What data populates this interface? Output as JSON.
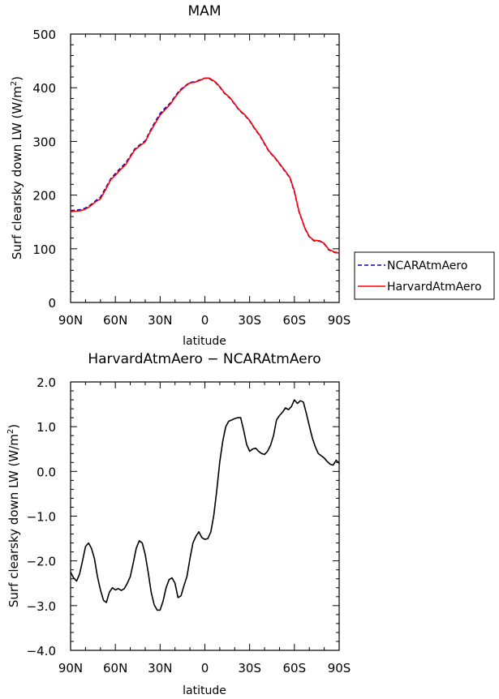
{
  "chart_data": [
    {
      "type": "line",
      "title": "MAM",
      "xlabel": "latitude",
      "ylabel": "Surf clearsky down LW (W/m",
      "ylabel_sup": "2",
      "ylabel_close": ")",
      "xlim": [
        90,
        -90
      ],
      "ylim": [
        0,
        500
      ],
      "x_ticks": [
        90,
        60,
        30,
        0,
        -30,
        -60,
        -90
      ],
      "x_tick_labels": [
        "90N",
        "60N",
        "30N",
        "0",
        "30S",
        "60S",
        "90S"
      ],
      "y_ticks": [
        0,
        100,
        200,
        300,
        400,
        500
      ],
      "y_tick_labels": [
        "0",
        "100",
        "200",
        "300",
        "400",
        "500"
      ],
      "legend_position": "right",
      "series": [
        {
          "name": "NCARAtmAero",
          "color": "#0000cc",
          "style": "dashed",
          "x": [
            90,
            87,
            83,
            80,
            77,
            73,
            70,
            67,
            63,
            60,
            57,
            53,
            50,
            47,
            43,
            40,
            37,
            33,
            30,
            27,
            23,
            20,
            17,
            13,
            10,
            7,
            3,
            0,
            -3,
            -7,
            -10,
            -13,
            -17,
            -20,
            -23,
            -27,
            -30,
            -33,
            -37,
            -40,
            -43,
            -47,
            -50,
            -53,
            -57,
            -60,
            -63,
            -67,
            -70,
            -73,
            -77,
            -80,
            -83,
            -87,
            -90
          ],
          "values": [
            171,
            172,
            173,
            176,
            181,
            190,
            196,
            211,
            231,
            240,
            249,
            260,
            273,
            286,
            295,
            301,
            318,
            338,
            352,
            361,
            372,
            384,
            395,
            404,
            410,
            411,
            415,
            418,
            417,
            410,
            401,
            390,
            380,
            369,
            358,
            348,
            338,
            325,
            310,
            295,
            281,
            269,
            258,
            247,
            232,
            206,
            170,
            138,
            122,
            115,
            114,
            109,
            98,
            93,
            92
          ]
        },
        {
          "name": "HarvardAtmAero",
          "color": "#ff0000",
          "style": "solid",
          "x": [
            90,
            87,
            83,
            80,
            77,
            73,
            70,
            67,
            63,
            60,
            57,
            53,
            50,
            47,
            43,
            40,
            37,
            33,
            30,
            27,
            23,
            20,
            17,
            13,
            10,
            7,
            3,
            0,
            -3,
            -7,
            -10,
            -13,
            -17,
            -20,
            -23,
            -27,
            -30,
            -33,
            -37,
            -40,
            -43,
            -47,
            -50,
            -53,
            -57,
            -60,
            -63,
            -67,
            -70,
            -73,
            -77,
            -80,
            -83,
            -87,
            -90
          ],
          "values": [
            169,
            170,
            171,
            174,
            179,
            188,
            193,
            208,
            229,
            237,
            246,
            257,
            271,
            284,
            293,
            299,
            316,
            335,
            349,
            358,
            370,
            382,
            393,
            403,
            409,
            410,
            414,
            418,
            418,
            411,
            402,
            391,
            381,
            370,
            359,
            349,
            339,
            326,
            311,
            296,
            282,
            270,
            259,
            248,
            233,
            208,
            171,
            139,
            123,
            116,
            115,
            110,
            99,
            94,
            92
          ]
        }
      ]
    },
    {
      "type": "line",
      "title": "HarvardAtmAero − NCARAtmAero",
      "xlabel": "latitude",
      "ylabel": "Surf clearsky down LW (W/m",
      "ylabel_sup": "2",
      "ylabel_close": ")",
      "xlim": [
        90,
        -90
      ],
      "ylim": [
        -4,
        2
      ],
      "x_ticks": [
        90,
        60,
        30,
        0,
        -30,
        -60,
        -90
      ],
      "x_tick_labels": [
        "90N",
        "60N",
        "30N",
        "0",
        "30S",
        "60S",
        "90S"
      ],
      "y_ticks": [
        -4,
        -3,
        -2,
        -1,
        0,
        1,
        2
      ],
      "y_tick_labels": [
        "−4.0",
        "−3.0",
        "−2.0",
        "−1.0",
        "0.0",
        "1.0",
        "2.0"
      ],
      "series": [
        {
          "color": "#000000",
          "style": "solid",
          "x": [
            90,
            88,
            86,
            84,
            82,
            80,
            78,
            76,
            74,
            72,
            70,
            68,
            66,
            64,
            62,
            60,
            58,
            56,
            54,
            52,
            50,
            48,
            46,
            44,
            42,
            40,
            38,
            36,
            34,
            32,
            30,
            28,
            26,
            24,
            22,
            20,
            18,
            16,
            14,
            12,
            10,
            8,
            6,
            4,
            2,
            0,
            -2,
            -4,
            -6,
            -8,
            -10,
            -12,
            -14,
            -16,
            -18,
            -20,
            -22,
            -24,
            -26,
            -28,
            -30,
            -32,
            -34,
            -36,
            -38,
            -40,
            -42,
            -44,
            -46,
            -48,
            -50,
            -52,
            -54,
            -56,
            -58,
            -60,
            -62,
            -64,
            -66,
            -68,
            -70,
            -72,
            -74,
            -76,
            -78,
            -80,
            -82,
            -84,
            -86,
            -88,
            -90
          ],
          "values": [
            -2.25,
            -2.38,
            -2.45,
            -2.3,
            -2.0,
            -1.68,
            -1.6,
            -1.72,
            -1.95,
            -2.35,
            -2.65,
            -2.88,
            -2.93,
            -2.7,
            -2.6,
            -2.65,
            -2.62,
            -2.66,
            -2.62,
            -2.5,
            -2.35,
            -2.05,
            -1.72,
            -1.55,
            -1.6,
            -1.85,
            -2.25,
            -2.7,
            -2.98,
            -3.1,
            -3.1,
            -2.9,
            -2.6,
            -2.42,
            -2.38,
            -2.5,
            -2.82,
            -2.78,
            -2.55,
            -2.35,
            -1.95,
            -1.6,
            -1.45,
            -1.35,
            -1.48,
            -1.52,
            -1.5,
            -1.35,
            -0.98,
            -0.42,
            0.22,
            0.68,
            1.0,
            1.12,
            1.15,
            1.18,
            1.2,
            1.2,
            0.92,
            0.6,
            0.45,
            0.5,
            0.52,
            0.45,
            0.4,
            0.38,
            0.45,
            0.58,
            0.8,
            1.15,
            1.25,
            1.32,
            1.42,
            1.38,
            1.45,
            1.6,
            1.52,
            1.58,
            1.55,
            1.3,
            1.02,
            0.75,
            0.55,
            0.4,
            0.35,
            0.3,
            0.22,
            0.16,
            0.14,
            0.25,
            0.18
          ]
        }
      ]
    }
  ]
}
